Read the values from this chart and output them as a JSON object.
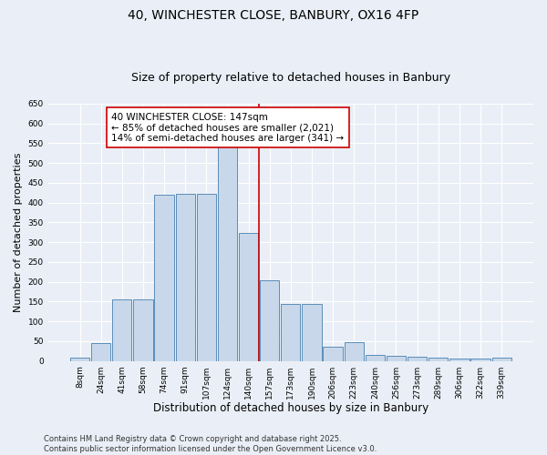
{
  "title": "40, WINCHESTER CLOSE, BANBURY, OX16 4FP",
  "subtitle": "Size of property relative to detached houses in Banbury",
  "xlabel": "Distribution of detached houses by size in Banbury",
  "ylabel": "Number of detached properties",
  "bar_labels": [
    "8sqm",
    "24sqm",
    "41sqm",
    "58sqm",
    "74sqm",
    "91sqm",
    "107sqm",
    "124sqm",
    "140sqm",
    "157sqm",
    "173sqm",
    "190sqm",
    "206sqm",
    "223sqm",
    "240sqm",
    "256sqm",
    "273sqm",
    "289sqm",
    "306sqm",
    "322sqm",
    "339sqm"
  ],
  "bar_values": [
    8,
    46,
    155,
    155,
    420,
    422,
    422,
    542,
    323,
    203,
    143,
    143,
    35,
    48,
    15,
    14,
    10,
    8,
    6,
    6,
    8
  ],
  "bar_color": "#c8d8ea",
  "bar_edge_color": "#5b8db8",
  "background_color": "#eaeff7",
  "grid_color": "#ffffff",
  "vline_color": "#cc0000",
  "annotation_text": "40 WINCHESTER CLOSE: 147sqm\n← 85% of detached houses are smaller (2,021)\n14% of semi-detached houses are larger (341) →",
  "annotation_box_color": "#ffffff",
  "annotation_box_edge": "#cc0000",
  "ylim": [
    0,
    650
  ],
  "yticks": [
    0,
    50,
    100,
    150,
    200,
    250,
    300,
    350,
    400,
    450,
    500,
    550,
    600,
    650
  ],
  "footer": "Contains HM Land Registry data © Crown copyright and database right 2025.\nContains public sector information licensed under the Open Government Licence v3.0.",
  "title_fontsize": 10,
  "subtitle_fontsize": 9,
  "xlabel_fontsize": 8.5,
  "ylabel_fontsize": 8,
  "tick_fontsize": 6.5,
  "annotation_fontsize": 7.5,
  "footer_fontsize": 6
}
